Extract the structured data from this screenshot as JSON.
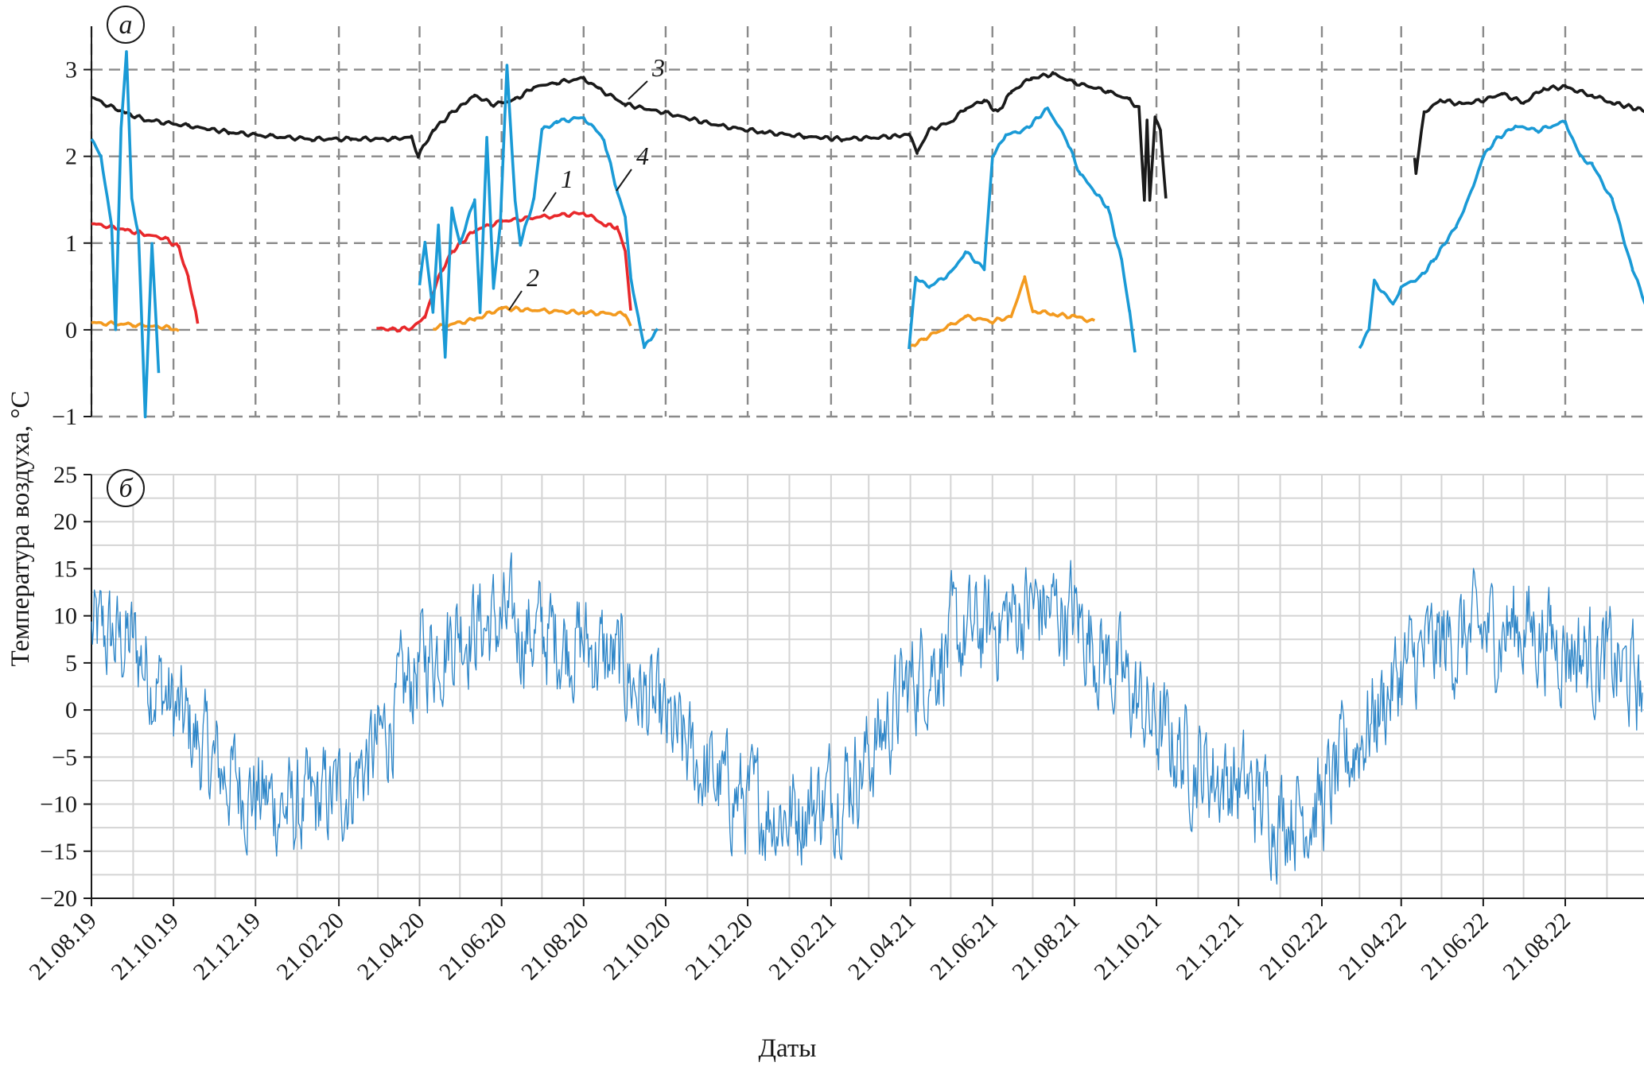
{
  "chart_data": [
    {
      "panel": "a",
      "type": "line",
      "panel_label": "а",
      "ylabel": "Температура воздуха, °C",
      "ylim": [
        -1,
        3.5
      ],
      "yticks": [
        -1,
        0,
        1,
        2,
        3
      ],
      "grid": "dashed",
      "x_range": [
        "2019-08-21",
        "2022-10-21"
      ],
      "series": [
        {
          "name": "3",
          "label": "3",
          "color": "#1a1a1a",
          "points": [
            [
              "2019-08-21",
              2.68
            ],
            [
              "2019-09-01",
              2.6
            ],
            [
              "2019-09-15",
              2.5
            ],
            [
              "2019-10-01",
              2.42
            ],
            [
              "2019-11-01",
              2.35
            ],
            [
              "2019-12-01",
              2.28
            ],
            [
              "2020-01-01",
              2.23
            ],
            [
              "2020-02-01",
              2.2
            ],
            [
              "2020-03-01",
              2.2
            ],
            [
              "2020-04-01",
              2.2
            ],
            [
              "2020-04-15",
              2.22
            ],
            [
              "2020-04-20",
              2.0
            ],
            [
              "2020-05-01",
              2.3
            ],
            [
              "2020-05-15",
              2.5
            ],
            [
              "2020-06-01",
              2.7
            ],
            [
              "2020-06-15",
              2.6
            ],
            [
              "2020-07-01",
              2.65
            ],
            [
              "2020-07-15",
              2.8
            ],
            [
              "2020-08-01",
              2.85
            ],
            [
              "2020-08-21",
              2.9
            ],
            [
              "2020-09-01",
              2.78
            ],
            [
              "2020-09-21",
              2.6
            ],
            [
              "2020-10-21",
              2.5
            ],
            [
              "2020-12-01",
              2.35
            ],
            [
              "2021-01-01",
              2.28
            ],
            [
              "2021-02-01",
              2.23
            ],
            [
              "2021-03-01",
              2.2
            ],
            [
              "2021-04-01",
              2.22
            ],
            [
              "2021-04-20",
              2.25
            ],
            [
              "2021-04-26",
              2.05
            ],
            [
              "2021-05-05",
              2.3
            ],
            [
              "2021-05-21",
              2.4
            ],
            [
              "2021-06-01",
              2.55
            ],
            [
              "2021-06-15",
              2.65
            ],
            [
              "2021-06-25",
              2.5
            ],
            [
              "2021-07-05",
              2.75
            ],
            [
              "2021-07-20",
              2.9
            ],
            [
              "2021-08-05",
              2.95
            ],
            [
              "2021-08-21",
              2.85
            ],
            [
              "2021-09-15",
              2.75
            ],
            [
              "2021-10-01",
              2.65
            ],
            [
              "2021-10-08",
              2.55
            ],
            [
              "2021-10-12",
              1.5
            ],
            [
              "2021-10-14",
              2.4
            ],
            [
              "2021-10-16",
              1.5
            ],
            [
              "2021-10-20",
              2.45
            ],
            [
              "2021-10-24",
              2.3
            ],
            [
              "2021-10-28",
              1.5
            ],
            [
              "2022-05-01",
              2.0
            ],
            [
              "2022-05-02",
              1.8
            ],
            [
              "2022-05-08",
              2.5
            ],
            [
              "2022-05-20",
              2.65
            ],
            [
              "2022-06-05",
              2.6
            ],
            [
              "2022-06-21",
              2.65
            ],
            [
              "2022-07-05",
              2.72
            ],
            [
              "2022-07-21",
              2.62
            ],
            [
              "2022-08-05",
              2.78
            ],
            [
              "2022-08-21",
              2.8
            ],
            [
              "2022-09-10",
              2.7
            ],
            [
              "2022-09-25",
              2.62
            ],
            [
              "2022-10-21",
              2.52
            ]
          ]
        },
        {
          "name": "1",
          "label": "1",
          "color": "#e8282b",
          "points": [
            [
              "2019-08-21",
              1.22
            ],
            [
              "2019-09-01",
              1.2
            ],
            [
              "2019-09-15",
              1.15
            ],
            [
              "2019-10-01",
              1.1
            ],
            [
              "2019-10-15",
              1.05
            ],
            [
              "2019-10-25",
              0.95
            ],
            [
              "2019-11-01",
              0.6
            ],
            [
              "2019-11-05",
              0.3
            ],
            [
              "2019-11-08",
              0.08
            ],
            [
              "2020-03-20",
              0.02
            ],
            [
              "2020-04-01",
              0.0
            ],
            [
              "2020-04-15",
              0.02
            ],
            [
              "2020-04-25",
              0.15
            ],
            [
              "2020-05-05",
              0.6
            ],
            [
              "2020-05-15",
              0.9
            ],
            [
              "2020-06-01",
              1.15
            ],
            [
              "2020-06-21",
              1.25
            ],
            [
              "2020-07-05",
              1.28
            ],
            [
              "2020-07-21",
              1.3
            ],
            [
              "2020-08-05",
              1.32
            ],
            [
              "2020-08-21",
              1.35
            ],
            [
              "2020-09-05",
              1.22
            ],
            [
              "2020-09-15",
              1.18
            ],
            [
              "2020-09-21",
              0.9
            ],
            [
              "2020-09-25",
              0.2
            ]
          ]
        },
        {
          "name": "2",
          "label": "2",
          "color": "#f39a1f",
          "points": [
            [
              "2019-08-21",
              0.08
            ],
            [
              "2019-09-21",
              0.06
            ],
            [
              "2019-10-21",
              0.02
            ],
            [
              "2019-10-25",
              0.0
            ],
            [
              "2020-05-01",
              0.02
            ],
            [
              "2020-06-01",
              0.12
            ],
            [
              "2020-06-21",
              0.25
            ],
            [
              "2020-07-21",
              0.22
            ],
            [
              "2020-08-21",
              0.2
            ],
            [
              "2020-09-21",
              0.18
            ],
            [
              "2020-09-25",
              0.05
            ],
            [
              "2021-04-21",
              -0.2
            ],
            [
              "2021-05-01",
              -0.1
            ],
            [
              "2021-05-21",
              0.05
            ],
            [
              "2021-06-01",
              0.15
            ],
            [
              "2021-06-21",
              0.1
            ],
            [
              "2021-07-05",
              0.15
            ],
            [
              "2021-07-15",
              0.6
            ],
            [
              "2021-07-21",
              0.22
            ],
            [
              "2021-08-05",
              0.18
            ],
            [
              "2021-08-21",
              0.15
            ],
            [
              "2021-09-05",
              0.1
            ]
          ]
        },
        {
          "name": "4",
          "label": "4",
          "color": "#1a9ad6",
          "points": [
            [
              "2019-08-21",
              2.2
            ],
            [
              "2019-08-28",
              2.0
            ],
            [
              "2019-09-05",
              1.2
            ],
            [
              "2019-09-08",
              0.0
            ],
            [
              "2019-09-12",
              2.3
            ],
            [
              "2019-09-16",
              3.2
            ],
            [
              "2019-09-20",
              1.5
            ],
            [
              "2019-09-25",
              1.1
            ],
            [
              "2019-09-30",
              -1.0
            ],
            [
              "2019-10-05",
              1.0
            ],
            [
              "2019-10-10",
              -0.5
            ],
            [
              "2020-04-21",
              0.5
            ],
            [
              "2020-04-25",
              1.0
            ],
            [
              "2020-05-01",
              0.2
            ],
            [
              "2020-05-05",
              1.2
            ],
            [
              "2020-05-10",
              -0.3
            ],
            [
              "2020-05-15",
              1.4
            ],
            [
              "2020-05-21",
              1.0
            ],
            [
              "2020-06-01",
              1.5
            ],
            [
              "2020-06-05",
              0.2
            ],
            [
              "2020-06-10",
              2.2
            ],
            [
              "2020-06-15",
              0.5
            ],
            [
              "2020-06-20",
              1.2
            ],
            [
              "2020-06-25",
              3.05
            ],
            [
              "2020-07-01",
              1.5
            ],
            [
              "2020-07-05",
              1.0
            ],
            [
              "2020-07-15",
              1.5
            ],
            [
              "2020-07-21",
              2.3
            ],
            [
              "2020-08-01",
              2.4
            ],
            [
              "2020-08-21",
              2.45
            ],
            [
              "2020-09-05",
              2.2
            ],
            [
              "2020-09-15",
              1.6
            ],
            [
              "2020-09-21",
              1.3
            ],
            [
              "2020-09-25",
              0.6
            ],
            [
              "2020-10-01",
              0.1
            ],
            [
              "2020-10-05",
              -0.2
            ],
            [
              "2020-10-15",
              0.0
            ],
            [
              "2021-04-20",
              -0.2
            ],
            [
              "2021-04-25",
              0.6
            ],
            [
              "2021-05-05",
              0.5
            ],
            [
              "2021-05-21",
              0.65
            ],
            [
              "2021-06-01",
              0.9
            ],
            [
              "2021-06-15",
              0.7
            ],
            [
              "2021-06-21",
              2.0
            ],
            [
              "2021-07-01",
              2.25
            ],
            [
              "2021-07-15",
              2.3
            ],
            [
              "2021-08-01",
              2.55
            ],
            [
              "2021-08-15",
              2.2
            ],
            [
              "2021-08-25",
              1.8
            ],
            [
              "2021-09-05",
              1.6
            ],
            [
              "2021-09-15",
              1.4
            ],
            [
              "2021-09-25",
              0.8
            ],
            [
              "2021-10-01",
              0.2
            ],
            [
              "2021-10-05",
              -0.25
            ],
            [
              "2022-03-21",
              -0.2
            ],
            [
              "2022-03-28",
              0.0
            ],
            [
              "2022-04-01",
              0.55
            ],
            [
              "2022-04-15",
              0.3
            ],
            [
              "2022-04-21",
              0.5
            ],
            [
              "2022-05-05",
              0.6
            ],
            [
              "2022-05-15",
              0.8
            ],
            [
              "2022-06-01",
              1.2
            ],
            [
              "2022-06-10",
              1.5
            ],
            [
              "2022-06-21",
              2.0
            ],
            [
              "2022-07-01",
              2.2
            ],
            [
              "2022-07-15",
              2.35
            ],
            [
              "2022-08-01",
              2.3
            ],
            [
              "2022-08-21",
              2.4
            ],
            [
              "2022-09-01",
              2.0
            ],
            [
              "2022-09-10",
              1.9
            ],
            [
              "2022-09-25",
              1.5
            ],
            [
              "2022-10-10",
              0.7
            ],
            [
              "2022-10-21",
              0.25
            ]
          ]
        }
      ]
    },
    {
      "panel": "b",
      "type": "line",
      "panel_label": "б",
      "xlabel": "Даты",
      "ylim": [
        -20,
        25
      ],
      "yticks": [
        -20,
        -15,
        -10,
        -5,
        0,
        5,
        10,
        15,
        20,
        25
      ],
      "grid": "solid",
      "series": [
        {
          "name": "air",
          "color": "#2e86c8",
          "description_free": true,
          "envelope": [
            [
              "2019-08-21",
              8
            ],
            [
              "2019-09-21",
              7
            ],
            [
              "2019-10-21",
              0
            ],
            [
              "2019-11-21",
              -6
            ],
            [
              "2019-12-21",
              -9
            ],
            [
              "2020-01-21",
              -11
            ],
            [
              "2020-02-21",
              -9
            ],
            [
              "2020-03-21",
              -4
            ],
            [
              "2020-04-21",
              5
            ],
            [
              "2020-05-21",
              9
            ],
            [
              "2020-06-21",
              9
            ],
            [
              "2020-07-21",
              8
            ],
            [
              "2020-08-21",
              7
            ],
            [
              "2020-09-21",
              4
            ],
            [
              "2020-10-21",
              -2
            ],
            [
              "2020-11-21",
              -7
            ],
            [
              "2020-12-21",
              -10
            ],
            [
              "2021-01-21",
              -11
            ],
            [
              "2021-02-21",
              -9
            ],
            [
              "2021-03-21",
              -5
            ],
            [
              "2021-04-21",
              3
            ],
            [
              "2021-05-21",
              7
            ],
            [
              "2021-06-21",
              9
            ],
            [
              "2021-07-21",
              11
            ],
            [
              "2021-08-21",
              10
            ],
            [
              "2021-09-21",
              4
            ],
            [
              "2021-10-21",
              -2
            ],
            [
              "2021-11-21",
              -6
            ],
            [
              "2021-12-21",
              -8
            ],
            [
              "2022-01-21",
              -11
            ],
            [
              "2022-02-21",
              -10
            ],
            [
              "2022-03-21",
              -3
            ],
            [
              "2022-04-21",
              4
            ],
            [
              "2022-05-21",
              7
            ],
            [
              "2022-06-21",
              8
            ],
            [
              "2022-07-21",
              9
            ],
            [
              "2022-08-21",
              7
            ],
            [
              "2022-09-21",
              5
            ],
            [
              "2022-10-21",
              2
            ]
          ]
        }
      ]
    }
  ],
  "x_ticks": [
    "21.08.19",
    "21.10.19",
    "21.12.19",
    "21.02.20",
    "21.04.20",
    "21.06.20",
    "21.08.20",
    "21.10.20",
    "21.12.20",
    "21.02.21",
    "21.04.21",
    "21.06.21",
    "21.08.21",
    "21.10.21",
    "21.12.21",
    "21.02.22",
    "21.04.22",
    "21.06.22",
    "21.08.22"
  ],
  "x_tick_dates": [
    "2019-08-21",
    "2019-10-21",
    "2019-12-21",
    "2020-02-21",
    "2020-04-21",
    "2020-06-21",
    "2020-08-21",
    "2020-10-21",
    "2020-12-21",
    "2021-02-21",
    "2021-04-21",
    "2021-06-21",
    "2021-08-21",
    "2021-10-21",
    "2021-12-21",
    "2022-02-21",
    "2022-04-21",
    "2022-06-21",
    "2022-08-21"
  ],
  "labels": {
    "ylabel": "Температура воздуха, °C",
    "xlabel": "Даты",
    "panel_a": "а",
    "panel_b": "б",
    "curve_1": "1",
    "curve_2": "2",
    "curve_3": "3",
    "curve_4": "4"
  }
}
